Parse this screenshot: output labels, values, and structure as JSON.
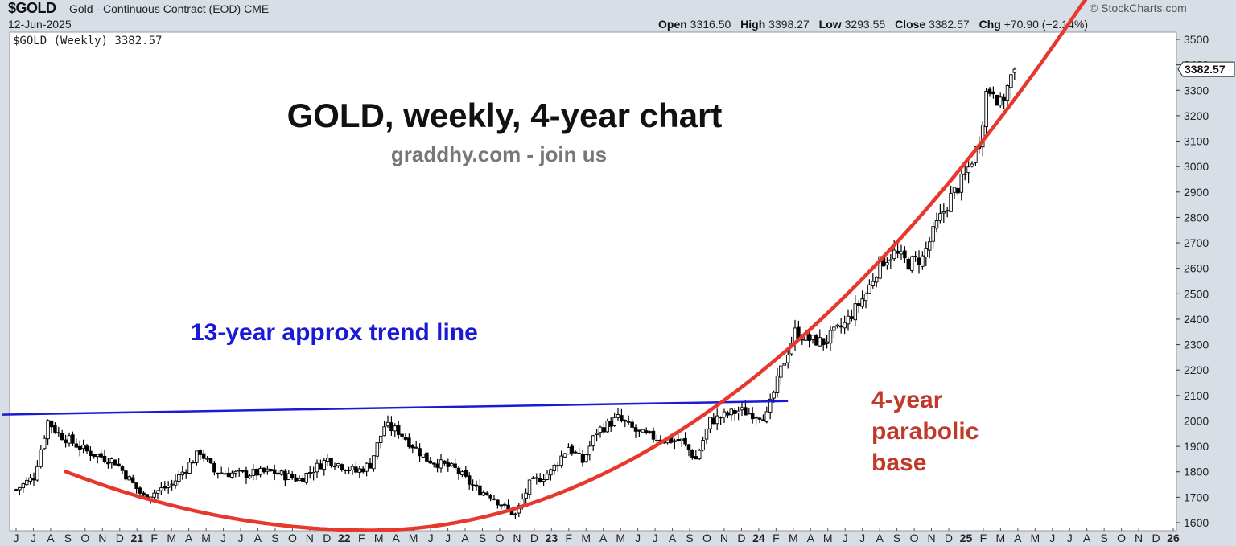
{
  "header": {
    "symbol": "$GOLD",
    "description": "Gold - Continuous Contract (EOD) CME",
    "date": "12-Jun-2025",
    "copyright": "© StockCharts.com",
    "open_label": "Open",
    "open": "3316.50",
    "high_label": "High",
    "high": "3398.27",
    "low_label": "Low",
    "low": "3293.55",
    "close_label": "Close",
    "close": "3382.57",
    "chg_label": "Chg",
    "chg": "+70.90 (+2.14%)"
  },
  "plot_label": "$GOLD (Weekly) 3382.57",
  "annotations": {
    "title": "GOLD, weekly, 4-year chart",
    "subtitle": "graddhy.com - join us",
    "trend_label": "13-year approx trend line",
    "parabola_label_1": "4-year",
    "parabola_label_2": "parabolic",
    "parabola_label_3": "base",
    "last_price_tag": "3382.57"
  },
  "colors": {
    "background": "#d7dee6",
    "plot_bg": "#ffffff",
    "candles": "#000000",
    "trend_line": "#1a1ad6",
    "parabola": "#e8372c",
    "title": "#111111",
    "subtitle": "#777777",
    "trend_text": "#1a1ad6",
    "parabola_text": "#c0392b"
  },
  "chart_data": {
    "type": "candlestick",
    "y_axis_side": "right",
    "ylim": [
      1590,
      3530
    ],
    "y_ticks": [
      1600,
      1700,
      1800,
      1900,
      2000,
      2100,
      2200,
      2300,
      2400,
      2500,
      2600,
      2700,
      2800,
      2900,
      3000,
      3100,
      3200,
      3300,
      3400,
      3500
    ],
    "x_tick_labels": [
      "J",
      "J",
      "A",
      "S",
      "O",
      "N",
      "D",
      "21",
      "F",
      "M",
      "A",
      "M",
      "J",
      "J",
      "A",
      "S",
      "O",
      "N",
      "D",
      "22",
      "F",
      "M",
      "A",
      "M",
      "J",
      "J",
      "A",
      "S",
      "O",
      "N",
      "D",
      "23",
      "F",
      "M",
      "A",
      "M",
      "J",
      "J",
      "A",
      "S",
      "O",
      "N",
      "D",
      "24",
      "F",
      "M",
      "A",
      "M",
      "J",
      "J",
      "A",
      "S",
      "O",
      "N",
      "D",
      "25",
      "F",
      "M",
      "A",
      "M",
      "J",
      "J",
      "A",
      "S",
      "O",
      "N",
      "D",
      "26"
    ],
    "x_label_index_bold": [
      7,
      19,
      31,
      43,
      55,
      67
    ],
    "x_start_month": "2020-06",
    "weekly_close_anchors": [
      [
        0,
        1730
      ],
      [
        5,
        1780
      ],
      [
        9,
        2000
      ],
      [
        12,
        1950
      ],
      [
        20,
        1880
      ],
      [
        28,
        1840
      ],
      [
        36,
        1700
      ],
      [
        44,
        1750
      ],
      [
        52,
        1880
      ],
      [
        56,
        1800
      ],
      [
        64,
        1790
      ],
      [
        72,
        1800
      ],
      [
        80,
        1770
      ],
      [
        88,
        1850
      ],
      [
        96,
        1800
      ],
      [
        100,
        1830
      ],
      [
        104,
        1980
      ],
      [
        108,
        1960
      ],
      [
        116,
        1850
      ],
      [
        124,
        1810
      ],
      [
        130,
        1730
      ],
      [
        134,
        1710
      ],
      [
        138,
        1660
      ],
      [
        141,
        1630
      ],
      [
        145,
        1750
      ],
      [
        151,
        1800
      ],
      [
        156,
        1900
      ],
      [
        160,
        1840
      ],
      [
        164,
        1960
      ],
      [
        170,
        2010
      ],
      [
        176,
        1950
      ],
      [
        182,
        1930
      ],
      [
        188,
        1920
      ],
      [
        192,
        1850
      ],
      [
        196,
        2000
      ],
      [
        204,
        2040
      ],
      [
        212,
        2020
      ],
      [
        216,
        2200
      ],
      [
        220,
        2350
      ],
      [
        224,
        2320
      ],
      [
        228,
        2310
      ],
      [
        234,
        2380
      ],
      [
        240,
        2500
      ],
      [
        244,
        2620
      ],
      [
        248,
        2660
      ],
      [
        252,
        2620
      ],
      [
        256,
        2640
      ],
      [
        260,
        2770
      ],
      [
        264,
        2880
      ],
      [
        268,
        2960
      ],
      [
        272,
        3100
      ],
      [
        274,
        3290
      ],
      [
        276,
        3310
      ],
      [
        278,
        3240
      ],
      [
        282,
        3382
      ]
    ],
    "last_close": 3382.57,
    "trend_line": {
      "label": "13-year approx trend line",
      "points": [
        [
          -4,
          2025
        ],
        [
          218,
          2078
        ]
      ]
    },
    "parabolic_base": {
      "label": "4-year parabolic base",
      "vertex_x": 100,
      "vertex_y": 1570,
      "x_range": [
        14,
        302
      ]
    }
  }
}
